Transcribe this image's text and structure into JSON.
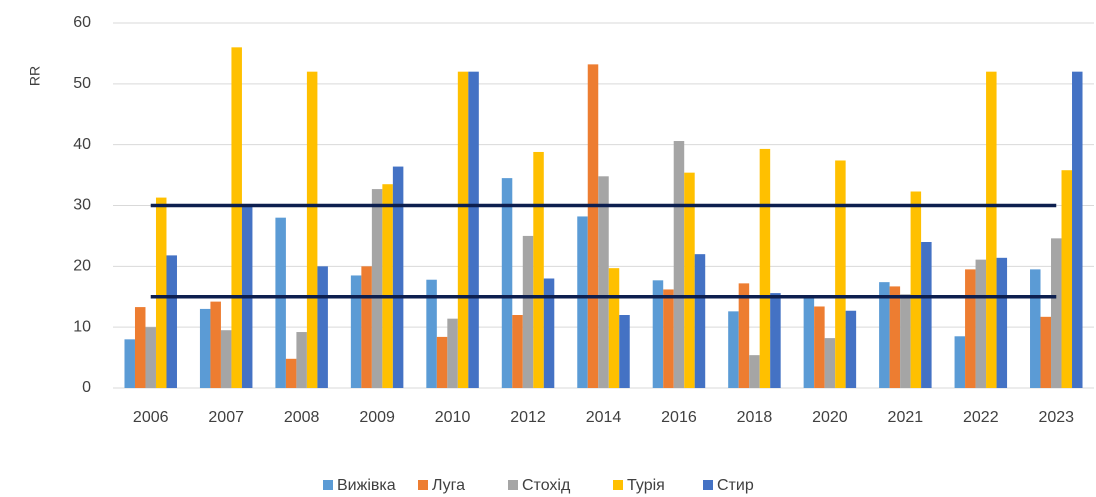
{
  "chart_data": {
    "type": "bar",
    "y_label": "RR",
    "categories": [
      "2006",
      "2007",
      "2008",
      "2009",
      "2010",
      "2012",
      "2014",
      "2016",
      "2018",
      "2020",
      "2021",
      "2022",
      "2023"
    ],
    "series": [
      {
        "name": "Вижівка",
        "color": "#5b9bd5",
        "values": [
          8,
          13,
          28,
          18.5,
          17.8,
          34.5,
          28.2,
          17.7,
          12.6,
          14.8,
          17.4,
          8.5,
          19.5
        ]
      },
      {
        "name": "Луга",
        "color": "#ed7d31",
        "values": [
          13.3,
          14.2,
          4.8,
          20,
          8.4,
          12,
          53.2,
          16.2,
          17.2,
          13.4,
          16.7,
          19.5,
          11.7
        ]
      },
      {
        "name": "Стохід",
        "color": "#a5a5a5",
        "values": [
          10,
          9.5,
          9.2,
          32.7,
          11.4,
          25,
          34.8,
          40.6,
          5.4,
          8.2,
          15.4,
          21.1,
          24.6
        ]
      },
      {
        "name": "Турія",
        "color": "#ffc000",
        "values": [
          31.3,
          56,
          52,
          33.5,
          52,
          38.8,
          19.7,
          35.4,
          39.3,
          37.4,
          32.3,
          52,
          35.8
        ]
      },
      {
        "name": "Стир",
        "color": "#4472c4",
        "values": [
          21.8,
          30,
          20,
          36.4,
          52,
          18,
          12,
          22,
          15.6,
          12.7,
          24,
          21.4,
          52
        ]
      }
    ],
    "reference_lines": [
      {
        "value": 30,
        "color": "#0d1f4f"
      },
      {
        "value": 15,
        "color": "#0d1f4f"
      }
    ],
    "ylim": [
      0,
      60
    ],
    "yticks": [
      0,
      10,
      20,
      30,
      40,
      50,
      60
    ],
    "grid": true,
    "legend": "bottom"
  }
}
